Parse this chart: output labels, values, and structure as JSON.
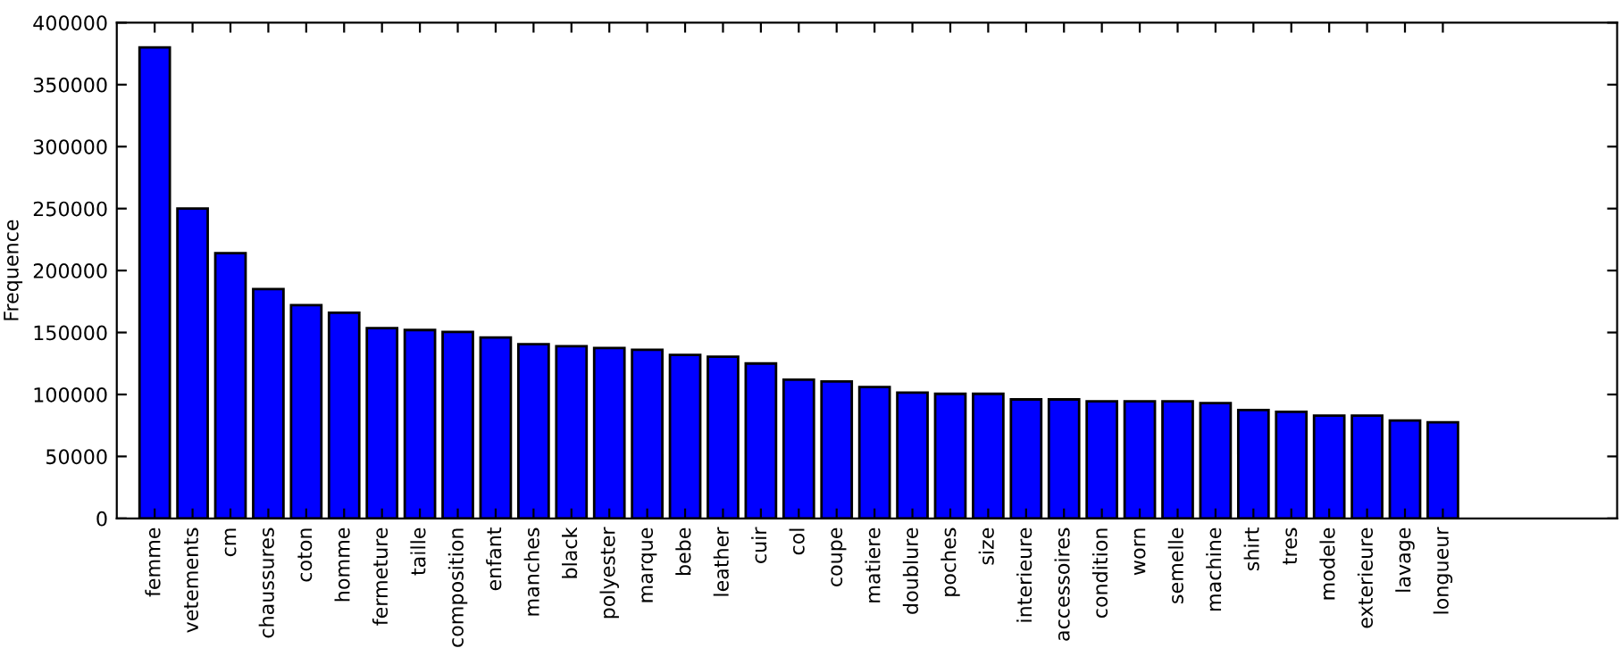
{
  "chart_data": {
    "type": "bar",
    "ylabel": "Frequence",
    "categories": [
      "femme",
      "vetements",
      "cm",
      "chaussures",
      "coton",
      "homme",
      "fermeture",
      "taille",
      "composition",
      "enfant",
      "manches",
      "black",
      "polyester",
      "marque",
      "bebe",
      "leather",
      "cuir",
      "col",
      "coupe",
      "matiere",
      "doublure",
      "poches",
      "size",
      "interieure",
      "accessoires",
      "condition",
      "worn",
      "semelle",
      "machine",
      "shirt",
      "tres",
      "modele",
      "exterieure",
      "lavage",
      "longueur"
    ],
    "values": [
      380000,
      250000,
      214000,
      185000,
      172000,
      166000,
      153500,
      152000,
      150500,
      146000,
      140500,
      139000,
      137500,
      136000,
      132000,
      130500,
      125000,
      112000,
      110500,
      106000,
      101500,
      100500,
      100500,
      96000,
      96000,
      94500,
      94500,
      94500,
      93000,
      87500,
      86000,
      83000,
      83000,
      79000,
      77500
    ],
    "color": "#0000ff",
    "ylim": [
      0,
      400000
    ],
    "yticks": [
      0,
      50000,
      100000,
      150000,
      200000,
      250000,
      300000,
      350000,
      400000
    ],
    "grid": false
  }
}
